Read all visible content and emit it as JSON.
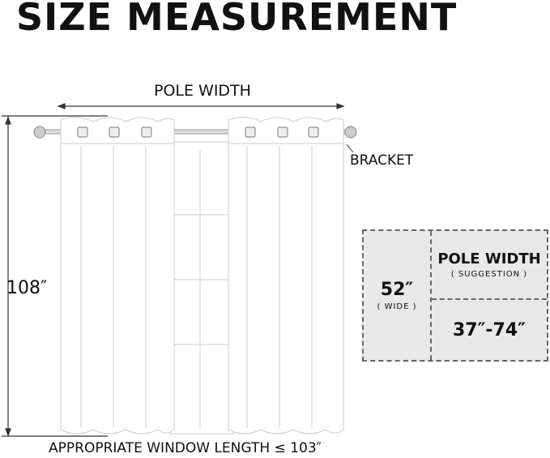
{
  "title": "SIZE MEASUREMENT",
  "labels": {
    "pole_width": "POLE WIDTH",
    "bracket": "BRACKET",
    "height": "108″",
    "window_length": "APPROPRIATE WINDOW LENGTH ≤ 103″"
  },
  "spec_table": {
    "width_value": "52″",
    "width_note": "( WIDE )",
    "pole_heading": "POLE WIDTH",
    "pole_note": "( SUGGESTION )",
    "pole_range": "37″-74″"
  },
  "colors": {
    "table_bg": "#e8e8e8",
    "curtain": "#ffffff",
    "outline": "#bbbbbb"
  }
}
